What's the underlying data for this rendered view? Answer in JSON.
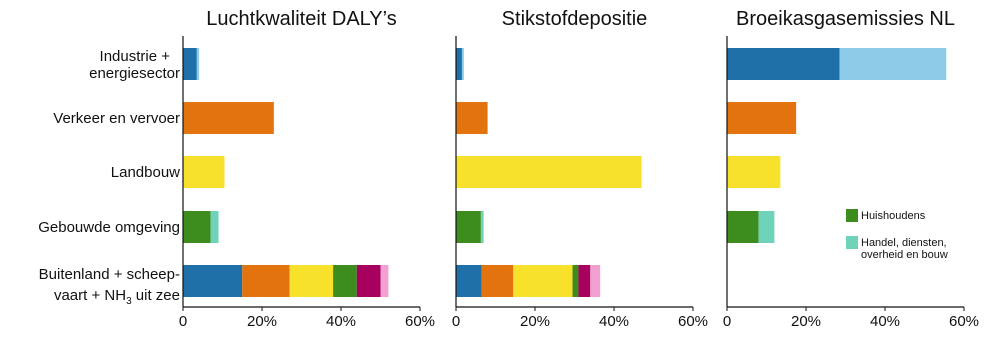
{
  "chart_data": {
    "type": "bar",
    "stacked": true,
    "orientation": "horizontal",
    "categories": [
      {
        "lines": [
          "Industrie +",
          "energiesector"
        ]
      },
      {
        "lines": [
          "Verkeer en vervoer"
        ]
      },
      {
        "lines": [
          "Landbouw"
        ]
      },
      {
        "lines": [
          "Gebouwde omgeving"
        ]
      },
      {
        "lines": [
          "Buitenland + scheep-",
          "vaart + NH",
          "3",
          " uit zee"
        ]
      }
    ],
    "xlim": [
      0,
      60
    ],
    "ticks": [
      {
        "value": 0,
        "label": "0"
      },
      {
        "value": 20,
        "label": "20%"
      },
      {
        "value": 40,
        "label": "40%"
      },
      {
        "value": 60,
        "label": "60%"
      }
    ],
    "colors": {
      "blue": "#1f6fa8",
      "lightblue": "#8ecbe8",
      "orange": "#e2730e",
      "yellow": "#f7e12a",
      "green": "#3d8c1e",
      "teal": "#6fd3ba",
      "magenta": "#a8005e",
      "pink": "#f2a0d2"
    },
    "panels": [
      {
        "title": "Luchtkwaliteit DALY’s",
        "bars": [
          [
            {
              "value": 3.5,
              "color": "blue"
            },
            {
              "value": 0.6,
              "color": "lightblue"
            }
          ],
          [
            {
              "value": 23,
              "color": "orange"
            }
          ],
          [
            {
              "value": 10.5,
              "color": "yellow"
            }
          ],
          [
            {
              "value": 7,
              "color": "green"
            },
            {
              "value": 2,
              "color": "teal"
            }
          ],
          [
            {
              "value": 15,
              "color": "blue"
            },
            {
              "value": 12,
              "color": "orange"
            },
            {
              "value": 11,
              "color": "yellow"
            },
            {
              "value": 6,
              "color": "green"
            },
            {
              "value": 6,
              "color": "magenta"
            },
            {
              "value": 2,
              "color": "pink"
            }
          ]
        ]
      },
      {
        "title": "Stikstofdepositie",
        "bars": [
          [
            {
              "value": 1.5,
              "color": "blue"
            },
            {
              "value": 0.5,
              "color": "lightblue"
            }
          ],
          [
            {
              "value": 8,
              "color": "orange"
            }
          ],
          [
            {
              "value": 47,
              "color": "yellow"
            }
          ],
          [
            {
              "value": 6.3,
              "color": "green"
            },
            {
              "value": 0.7,
              "color": "teal"
            }
          ],
          [
            {
              "value": 6.5,
              "color": "blue"
            },
            {
              "value": 8,
              "color": "orange"
            },
            {
              "value": 15,
              "color": "yellow"
            },
            {
              "value": 1.5,
              "color": "green"
            },
            {
              "value": 3,
              "color": "magenta"
            },
            {
              "value": 2.5,
              "color": "pink"
            }
          ]
        ]
      },
      {
        "title": "Broeikasgasemissies NL",
        "bars": [
          [
            {
              "value": 28.5,
              "color": "blue"
            },
            {
              "value": 27,
              "color": "lightblue"
            }
          ],
          [
            {
              "value": 17.5,
              "color": "orange"
            }
          ],
          [
            {
              "value": 13.5,
              "color": "yellow"
            }
          ],
          [
            {
              "value": 8,
              "color": "green"
            },
            {
              "value": 4,
              "color": "teal"
            }
          ],
          []
        ]
      }
    ],
    "legend": {
      "panel": 2,
      "items": [
        {
          "lines": [
            "Huishoudens"
          ],
          "color": "green"
        },
        {
          "lines": [
            "Handel, diensten,",
            "overheid en bouw"
          ],
          "color": "teal"
        }
      ]
    }
  }
}
